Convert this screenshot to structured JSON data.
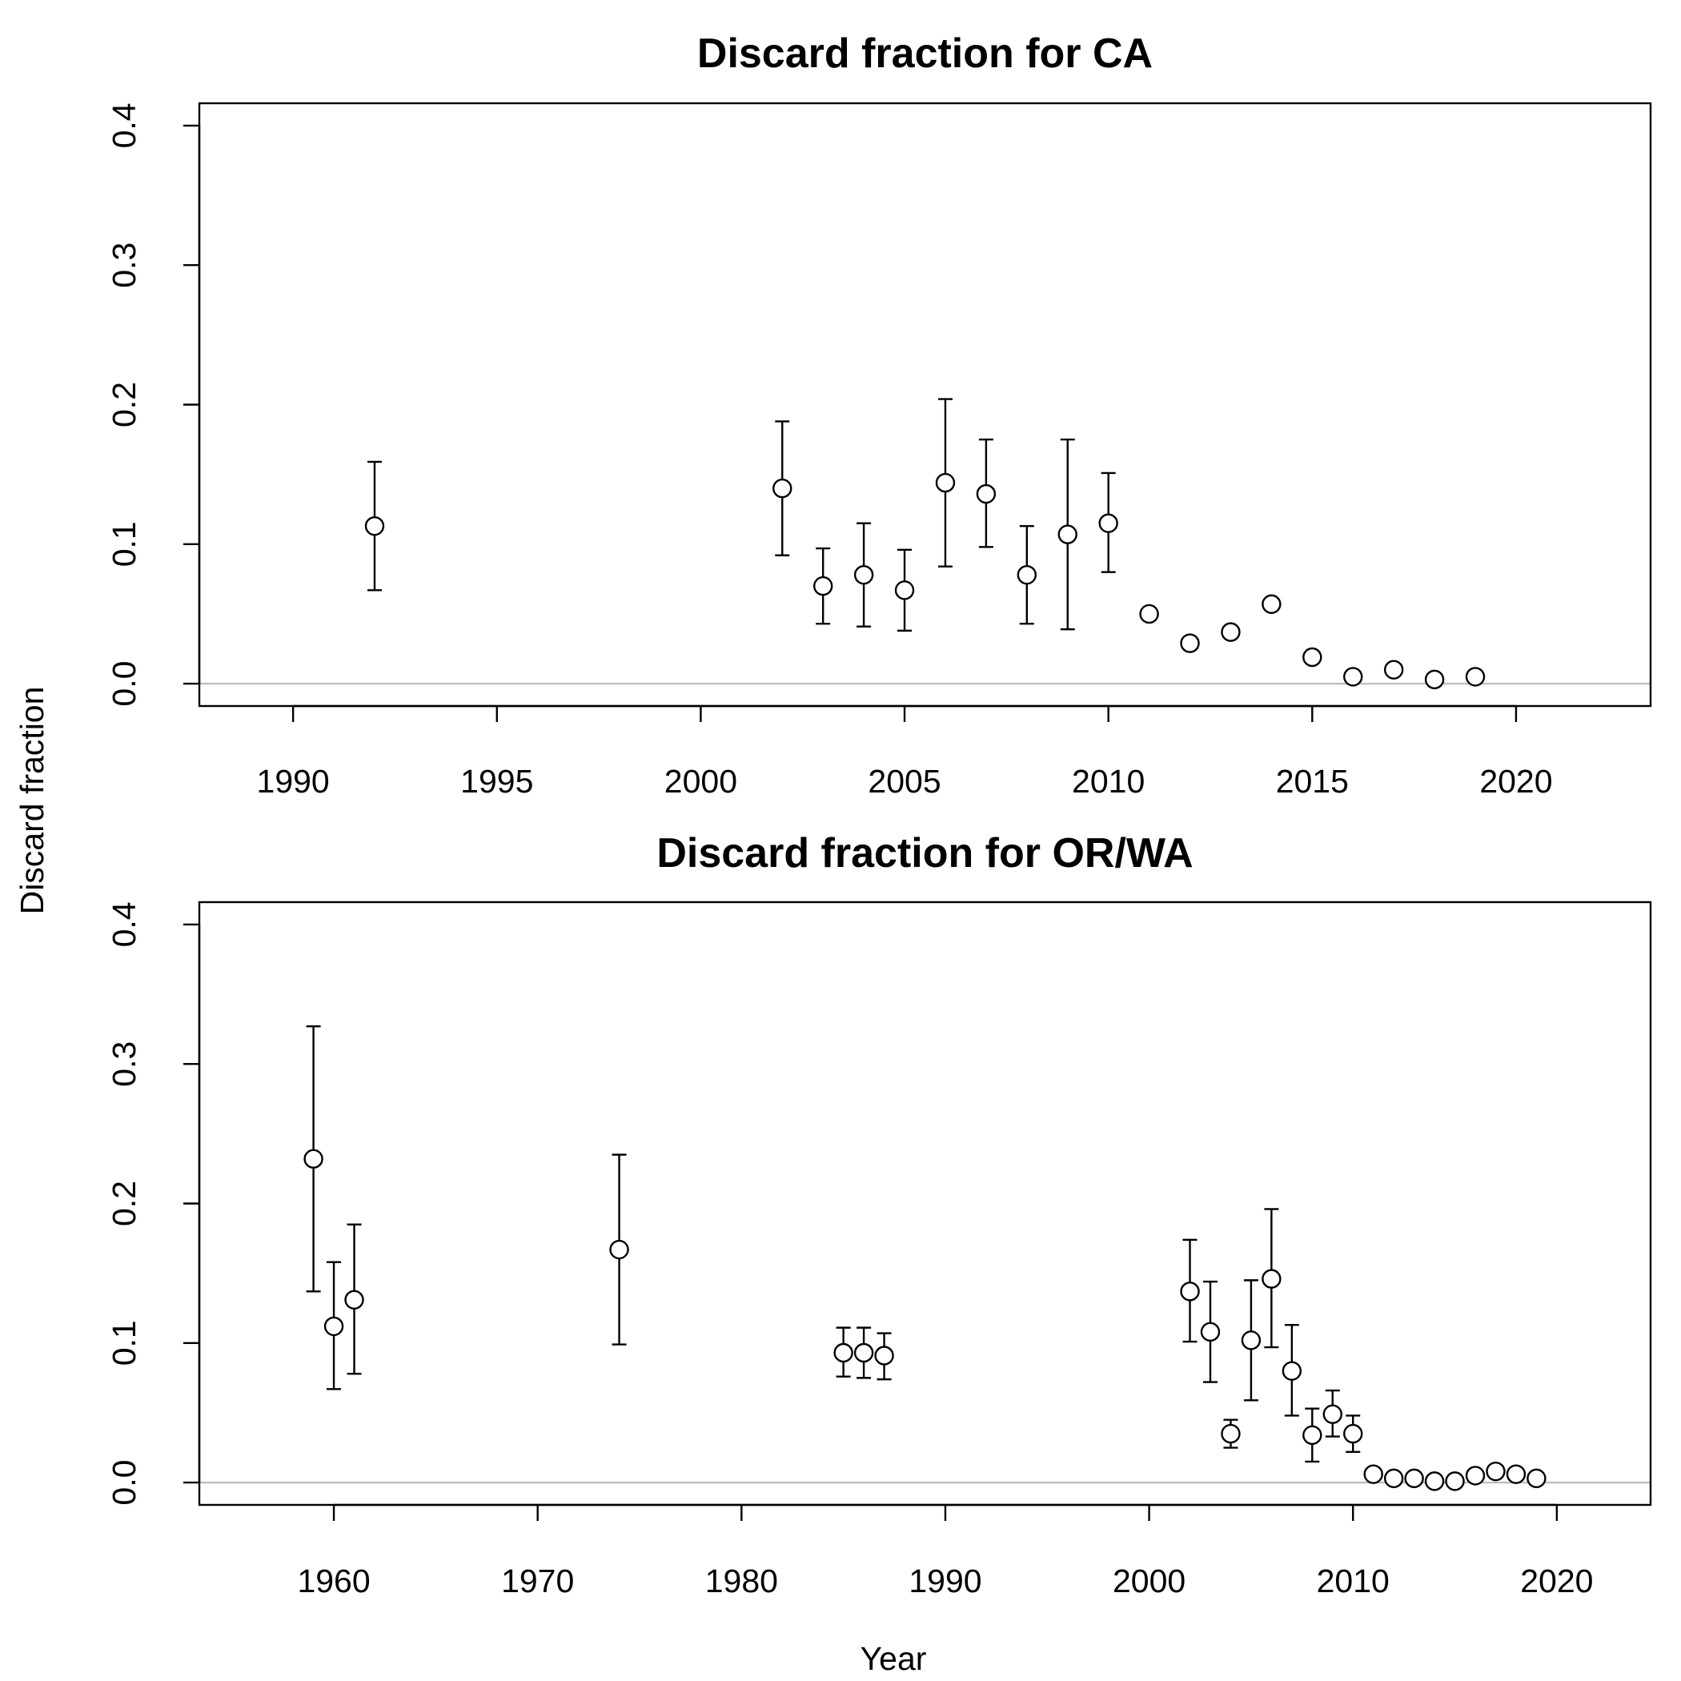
{
  "figure": {
    "ylabel": "Discard fraction",
    "xlabel": "Year"
  },
  "chart_data": [
    {
      "type": "scatter",
      "title": "Discard fraction for CA",
      "xlim": [
        1987.7,
        2023.3
      ],
      "ylim": [
        -0.016,
        0.416
      ],
      "xticks": [
        1990,
        1995,
        2000,
        2005,
        2010,
        2015,
        2020
      ],
      "yticks": [
        0.0,
        0.1,
        0.2,
        0.3,
        0.4
      ],
      "yticklabels": [
        "0.0",
        "0.1",
        "0.2",
        "0.3",
        "0.4"
      ],
      "reference_line": 0.0,
      "grid": false,
      "points": [
        {
          "x": 1992,
          "y": 0.113,
          "lo": 0.067,
          "hi": 0.159
        },
        {
          "x": 2002,
          "y": 0.14,
          "lo": 0.092,
          "hi": 0.188
        },
        {
          "x": 2003,
          "y": 0.07,
          "lo": 0.043,
          "hi": 0.097
        },
        {
          "x": 2004,
          "y": 0.078,
          "lo": 0.041,
          "hi": 0.115
        },
        {
          "x": 2005,
          "y": 0.067,
          "lo": 0.038,
          "hi": 0.096
        },
        {
          "x": 2006,
          "y": 0.144,
          "lo": 0.084,
          "hi": 0.204
        },
        {
          "x": 2007,
          "y": 0.136,
          "lo": 0.098,
          "hi": 0.175
        },
        {
          "x": 2008,
          "y": 0.078,
          "lo": 0.043,
          "hi": 0.113
        },
        {
          "x": 2009,
          "y": 0.107,
          "lo": 0.039,
          "hi": 0.175
        },
        {
          "x": 2010,
          "y": 0.115,
          "lo": 0.08,
          "hi": 0.151
        },
        {
          "x": 2011,
          "y": 0.05,
          "lo": 0.048,
          "hi": 0.052
        },
        {
          "x": 2012,
          "y": 0.029,
          "lo": 0.029,
          "hi": 0.029
        },
        {
          "x": 2013,
          "y": 0.037,
          "lo": 0.037,
          "hi": 0.037
        },
        {
          "x": 2014,
          "y": 0.057,
          "lo": 0.054,
          "hi": 0.06
        },
        {
          "x": 2015,
          "y": 0.019,
          "lo": 0.019,
          "hi": 0.019
        },
        {
          "x": 2016,
          "y": 0.005,
          "lo": 0.005,
          "hi": 0.005
        },
        {
          "x": 2017,
          "y": 0.01,
          "lo": 0.01,
          "hi": 0.01
        },
        {
          "x": 2018,
          "y": 0.003,
          "lo": 0.003,
          "hi": 0.003
        },
        {
          "x": 2019,
          "y": 0.005,
          "lo": 0.005,
          "hi": 0.005
        }
      ]
    },
    {
      "type": "scatter",
      "title": "Discard fraction for OR/WA",
      "xlim": [
        1953.4,
        2024.6
      ],
      "ylim": [
        -0.016,
        0.416
      ],
      "xticks": [
        1960,
        1970,
        1980,
        1990,
        2000,
        2010,
        2020
      ],
      "yticks": [
        0.0,
        0.1,
        0.2,
        0.3,
        0.4
      ],
      "yticklabels": [
        "0.0",
        "0.1",
        "0.2",
        "0.3",
        "0.4"
      ],
      "reference_line": 0.0,
      "grid": false,
      "points": [
        {
          "x": 1959,
          "y": 0.232,
          "lo": 0.137,
          "hi": 0.327
        },
        {
          "x": 1960,
          "y": 0.112,
          "lo": 0.067,
          "hi": 0.158
        },
        {
          "x": 1961,
          "y": 0.131,
          "lo": 0.078,
          "hi": 0.185
        },
        {
          "x": 1974,
          "y": 0.167,
          "lo": 0.099,
          "hi": 0.235
        },
        {
          "x": 1985,
          "y": 0.093,
          "lo": 0.076,
          "hi": 0.111
        },
        {
          "x": 1986,
          "y": 0.093,
          "lo": 0.075,
          "hi": 0.111
        },
        {
          "x": 1987,
          "y": 0.091,
          "lo": 0.074,
          "hi": 0.107
        },
        {
          "x": 2002,
          "y": 0.137,
          "lo": 0.101,
          "hi": 0.174
        },
        {
          "x": 2003,
          "y": 0.108,
          "lo": 0.072,
          "hi": 0.144
        },
        {
          "x": 2004,
          "y": 0.035,
          "lo": 0.025,
          "hi": 0.045
        },
        {
          "x": 2005,
          "y": 0.102,
          "lo": 0.059,
          "hi": 0.145
        },
        {
          "x": 2006,
          "y": 0.146,
          "lo": 0.097,
          "hi": 0.196
        },
        {
          "x": 2007,
          "y": 0.08,
          "lo": 0.048,
          "hi": 0.113
        },
        {
          "x": 2008,
          "y": 0.034,
          "lo": 0.015,
          "hi": 0.053
        },
        {
          "x": 2009,
          "y": 0.049,
          "lo": 0.033,
          "hi": 0.066
        },
        {
          "x": 2010,
          "y": 0.035,
          "lo": 0.022,
          "hi": 0.048
        },
        {
          "x": 2011,
          "y": 0.006,
          "lo": 0.006,
          "hi": 0.006
        },
        {
          "x": 2012,
          "y": 0.003,
          "lo": 0.003,
          "hi": 0.003
        },
        {
          "x": 2013,
          "y": 0.003,
          "lo": 0.003,
          "hi": 0.003
        },
        {
          "x": 2014,
          "y": 0.001,
          "lo": 0.001,
          "hi": 0.001
        },
        {
          "x": 2015,
          "y": 0.001,
          "lo": 0.001,
          "hi": 0.001
        },
        {
          "x": 2016,
          "y": 0.005,
          "lo": 0.005,
          "hi": 0.005
        },
        {
          "x": 2017,
          "y": 0.008,
          "lo": 0.008,
          "hi": 0.008
        },
        {
          "x": 2018,
          "y": 0.006,
          "lo": 0.006,
          "hi": 0.006
        },
        {
          "x": 2019,
          "y": 0.003,
          "lo": 0.003,
          "hi": 0.003
        }
      ]
    }
  ]
}
